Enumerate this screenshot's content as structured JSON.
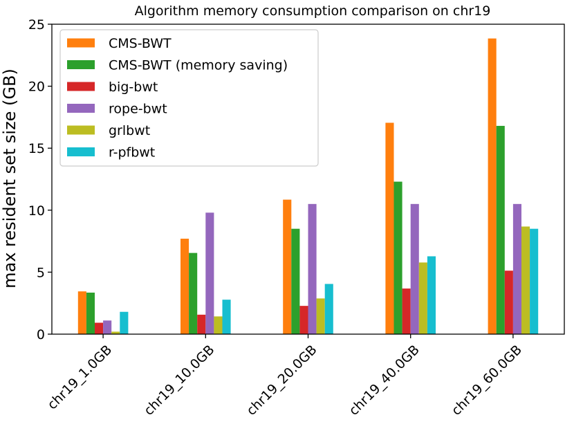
{
  "chart_data": {
    "type": "bar",
    "title": "Algorithm memory consumption comparison on chr19",
    "xlabel": "",
    "ylabel": "max resident set size (GB)",
    "ylim": [
      0,
      25
    ],
    "yticks": [
      0,
      5,
      10,
      15,
      20,
      25
    ],
    "grid": false,
    "legend_position": "top-left",
    "categories": [
      "chr19_1.0GB",
      "chr19_10.0GB",
      "chr19_20.0GB",
      "chr19_40.0GB",
      "chr19_60.0GB"
    ],
    "series": [
      {
        "name": "CMS-BWT",
        "color": "#ff7f0e",
        "values": [
          3.45,
          7.7,
          10.85,
          17.05,
          23.85
        ]
      },
      {
        "name": "CMS-BWT (memory saving)",
        "color": "#2ca02c",
        "values": [
          3.35,
          6.55,
          8.5,
          12.3,
          16.8
        ]
      },
      {
        "name": "big-bwt",
        "color": "#d62728",
        "values": [
          0.92,
          1.57,
          2.28,
          3.68,
          5.12
        ]
      },
      {
        "name": "rope-bwt",
        "color": "#9467bd",
        "values": [
          1.1,
          9.8,
          10.5,
          10.5,
          10.5
        ]
      },
      {
        "name": "grlbwt",
        "color": "#bcbd22",
        "values": [
          0.2,
          1.43,
          2.88,
          5.78,
          8.68
        ]
      },
      {
        "name": "r-pfbwt",
        "color": "#17becf",
        "values": [
          1.8,
          2.78,
          4.05,
          6.28,
          8.5
        ]
      }
    ]
  }
}
